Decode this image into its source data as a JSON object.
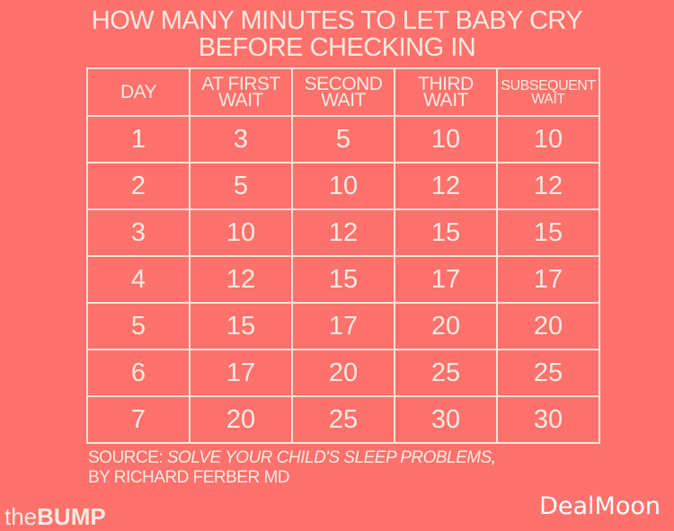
{
  "title_line1": "HOW MANY MINUTES TO LET BABY CRY",
  "title_line2": "BEFORE CHECKING IN",
  "chart_data": {
    "type": "table",
    "title": "HOW MANY MINUTES TO LET BABY CRY BEFORE CHECKING IN",
    "columns": [
      {
        "l1": "DAY",
        "l2": ""
      },
      {
        "l1": "AT FIRST",
        "l2": "WAIT"
      },
      {
        "l1": "SECOND",
        "l2": "WAIT"
      },
      {
        "l1": "THIRD",
        "l2": "WAIT"
      },
      {
        "l1": "SUBSEQUENT",
        "l2": "WAIT"
      }
    ],
    "rows": [
      [
        "1",
        "3",
        "5",
        "10",
        "10"
      ],
      [
        "2",
        "5",
        "10",
        "12",
        "12"
      ],
      [
        "3",
        "10",
        "12",
        "15",
        "15"
      ],
      [
        "4",
        "12",
        "15",
        "17",
        "17"
      ],
      [
        "5",
        "15",
        "17",
        "20",
        "20"
      ],
      [
        "6",
        "17",
        "20",
        "25",
        "25"
      ],
      [
        "7",
        "20",
        "25",
        "30",
        "30"
      ]
    ]
  },
  "source_label": "SOURCE: ",
  "source_title": "SOLVE YOUR CHILD'S SLEEP PROBLEMS,",
  "source_author": "BY RICHARD FERBER MD",
  "logo_left_the": "the",
  "logo_left_bump": "BUMP",
  "logo_right": "DealMoon",
  "colors": {
    "background": "#fe716d",
    "text": "#fdeade"
  }
}
